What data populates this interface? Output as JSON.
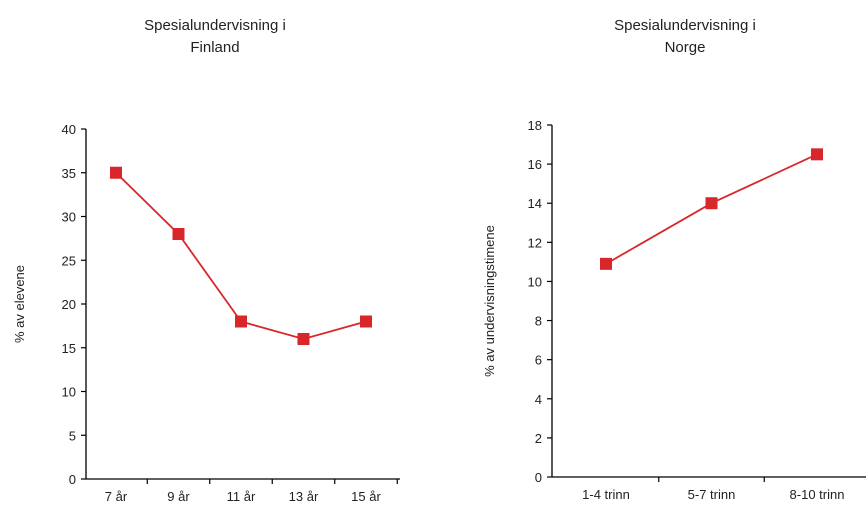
{
  "chart_data": [
    {
      "type": "line",
      "title_line1": "Spesialundervisning i",
      "title_line2": "Finland",
      "xlabel": "",
      "ylabel": "% av elevene",
      "categories": [
        "7 år",
        "9 år",
        "11 år",
        "13 år",
        "15 år"
      ],
      "series": [
        {
          "values": [
            35,
            28,
            18,
            16,
            18
          ]
        }
      ],
      "ylim": [
        0,
        40
      ],
      "yticks": [
        0,
        5,
        10,
        15,
        20,
        25,
        30,
        35,
        40
      ],
      "grid": false,
      "color": "#d9262b"
    },
    {
      "type": "line",
      "title_line1": "Spesialundervisning i",
      "title_line2": "Norge",
      "xlabel": "",
      "ylabel": "% av undervisningstimene",
      "categories": [
        "1-4 trinn",
        "5-7 trinn",
        "8-10 trinn"
      ],
      "series": [
        {
          "values": [
            10.9,
            14,
            16.5
          ]
        }
      ],
      "ylim": [
        0,
        18
      ],
      "yticks": [
        0,
        2,
        4,
        6,
        8,
        10,
        12,
        14,
        16,
        18
      ],
      "grid": false,
      "color": "#d9262b"
    }
  ]
}
